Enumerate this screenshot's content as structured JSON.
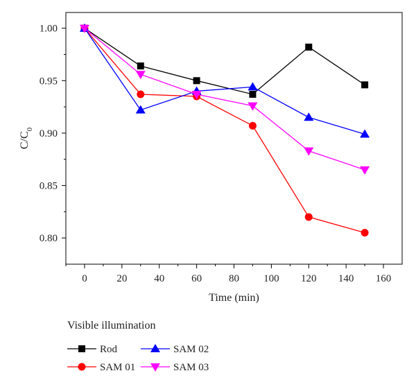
{
  "chart_data": {
    "type": "line",
    "title": "",
    "xlabel": "Time (min)",
    "ylabel": "C/C",
    "ylabel_subscript": "0",
    "xlim": [
      -10,
      170
    ],
    "ylim": [
      0.775,
      1.015
    ],
    "xticks": [
      0,
      20,
      40,
      60,
      80,
      100,
      120,
      140,
      160
    ],
    "yticks": [
      0.8,
      0.85,
      0.9,
      0.95,
      1.0
    ],
    "ytick_labels": [
      "0.80",
      "0.85",
      "0.90",
      "0.95",
      "1.00"
    ],
    "legend_title": "Visible illumination",
    "legend_position": "bottom",
    "x": [
      0,
      30,
      60,
      90,
      120,
      150
    ],
    "series": [
      {
        "name": "Rod",
        "color": "#000000",
        "marker": "square",
        "values": [
          1.0,
          0.964,
          0.95,
          0.937,
          0.982,
          0.946
        ]
      },
      {
        "name": "SAM 01",
        "color": "#ff0000",
        "marker": "circle",
        "values": [
          1.0,
          0.937,
          0.935,
          0.907,
          0.82,
          0.805
        ]
      },
      {
        "name": "SAM 02",
        "color": "#0000ff",
        "marker": "triangle-up",
        "values": [
          1.0,
          0.922,
          0.94,
          0.944,
          0.915,
          0.899
        ]
      },
      {
        "name": "SAM 03",
        "color": "#ff00ff",
        "marker": "triangle-down",
        "values": [
          1.0,
          0.956,
          0.937,
          0.926,
          0.883,
          0.865
        ]
      }
    ]
  }
}
